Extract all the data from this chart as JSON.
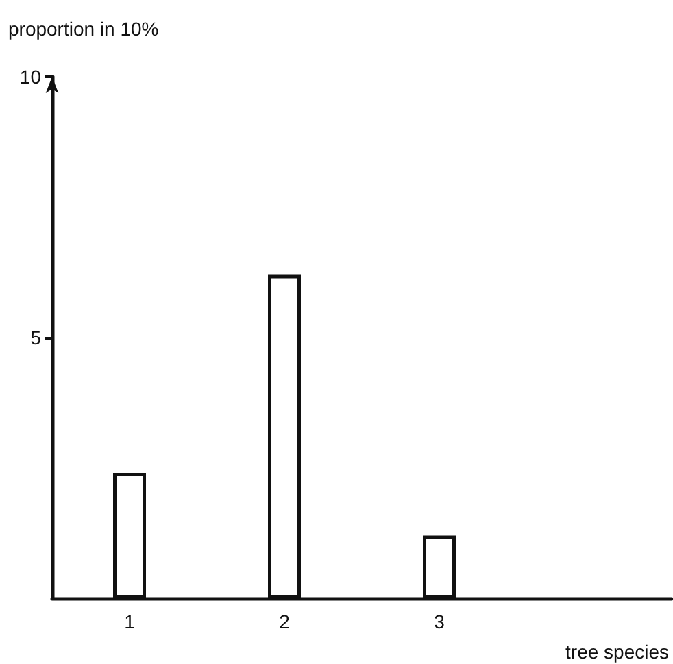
{
  "chart_data": {
    "type": "bar",
    "ylabel": "proportion in 10%",
    "xlabel": "tree species",
    "categories": [
      "1",
      "2",
      "3",
      null
    ],
    "values": [
      2.4,
      6.2,
      1.2,
      null
    ],
    "color": "#ffffff",
    "ylim": [
      0,
      10
    ],
    "yticks": [
      5,
      10
    ],
    "grid": false
  }
}
